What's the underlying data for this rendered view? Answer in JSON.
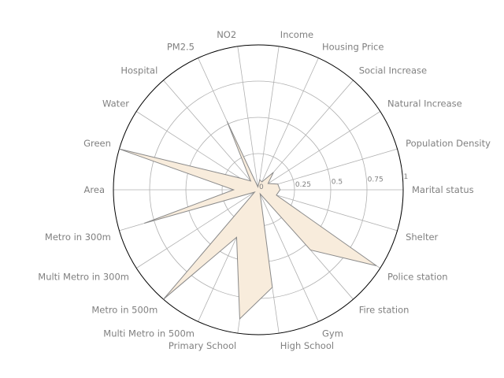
{
  "chart_data": {
    "type": "radar",
    "title": "",
    "axes": [
      "Marital status",
      "Population Density",
      "Natural Increase",
      "Social Increase",
      "Housing Price",
      "Income",
      "NO2",
      "PM2.5",
      "Hospital",
      "Water",
      "Green",
      "Area",
      "Metro in 300m",
      "Multi Metro in 300m",
      "Metro in 500m",
      "Multi Metro in 500m",
      "Primary School",
      "High School",
      "Gym",
      "Fire station",
      "Police station",
      "Shelter"
    ],
    "rticks": [
      0,
      0.25,
      0.5,
      0.75,
      1
    ],
    "rtick_labels": [
      "0",
      "0.25",
      "0.5",
      "0.75",
      "1"
    ],
    "rlim": [
      0,
      1
    ],
    "series": [
      {
        "values": [
          0.15,
          0.14,
          0.08,
          0.16,
          0.06,
          0.07,
          0.02,
          0.52,
          0.08,
          0.15,
          1.0,
          0.17,
          0.82,
          0.03,
          1.0,
          0.36,
          0.9,
          0.68,
          0.03,
          0.55,
          0.97,
          0.13
        ],
        "fill": "#f8ecdc",
        "edge": "#8a8a8a"
      }
    ],
    "grid": true
  }
}
